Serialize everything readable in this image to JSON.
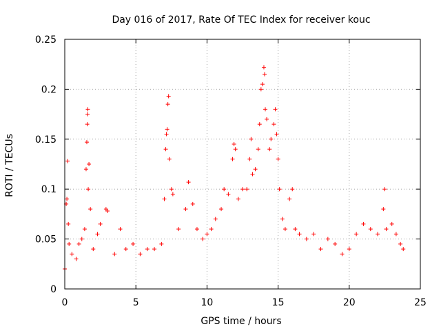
{
  "chart_data": {
    "type": "scatter",
    "title": "Day 016 of 2017, Rate Of TEC Index for receiver kouc",
    "xlabel": "GPS time / hours",
    "ylabel": "ROTI / TECUs",
    "xlim": [
      0,
      25
    ],
    "ylim": [
      0,
      0.25
    ],
    "x_ticks": [
      0,
      5,
      10,
      15,
      20,
      25
    ],
    "x_tick_labels": [
      "0",
      "5",
      "10",
      "15",
      "20",
      "25"
    ],
    "y_ticks": [
      0,
      0.05,
      0.1,
      0.15,
      0.2,
      0.25
    ],
    "y_tick_labels": [
      "0",
      "0.05",
      "0.1",
      "0.15",
      "0.2",
      "0.25"
    ],
    "grid": true,
    "marker": "plus",
    "color": "#ff0000",
    "series": [
      {
        "points": [
          [
            0.0,
            0.02
          ],
          [
            0.1,
            0.085
          ],
          [
            0.15,
            0.09
          ],
          [
            0.2,
            0.128
          ],
          [
            0.25,
            0.065
          ],
          [
            0.3,
            0.045
          ],
          [
            0.5,
            0.035
          ],
          [
            0.8,
            0.03
          ],
          [
            1.0,
            0.045
          ],
          [
            1.2,
            0.05
          ],
          [
            1.4,
            0.06
          ],
          [
            1.5,
            0.12
          ],
          [
            1.55,
            0.147
          ],
          [
            1.58,
            0.165
          ],
          [
            1.6,
            0.175
          ],
          [
            1.62,
            0.18
          ],
          [
            1.65,
            0.1
          ],
          [
            1.7,
            0.125
          ],
          [
            1.8,
            0.08
          ],
          [
            2.0,
            0.04
          ],
          [
            2.3,
            0.055
          ],
          [
            2.5,
            0.065
          ],
          [
            2.9,
            0.08
          ],
          [
            3.0,
            0.078
          ],
          [
            3.5,
            0.035
          ],
          [
            3.9,
            0.06
          ],
          [
            4.3,
            0.04
          ],
          [
            4.8,
            0.045
          ],
          [
            5.3,
            0.035
          ],
          [
            5.8,
            0.04
          ],
          [
            6.3,
            0.04
          ],
          [
            6.8,
            0.045
          ],
          [
            7.0,
            0.09
          ],
          [
            7.1,
            0.14
          ],
          [
            7.15,
            0.155
          ],
          [
            7.2,
            0.16
          ],
          [
            7.25,
            0.185
          ],
          [
            7.3,
            0.193
          ],
          [
            7.35,
            0.13
          ],
          [
            7.5,
            0.1
          ],
          [
            7.6,
            0.095
          ],
          [
            8.0,
            0.06
          ],
          [
            8.5,
            0.08
          ],
          [
            8.7,
            0.107
          ],
          [
            9.0,
            0.085
          ],
          [
            9.3,
            0.06
          ],
          [
            9.7,
            0.05
          ],
          [
            10.0,
            0.055
          ],
          [
            10.3,
            0.06
          ],
          [
            10.6,
            0.07
          ],
          [
            11.0,
            0.08
          ],
          [
            11.2,
            0.1
          ],
          [
            11.5,
            0.095
          ],
          [
            11.8,
            0.13
          ],
          [
            11.9,
            0.145
          ],
          [
            12.0,
            0.14
          ],
          [
            12.2,
            0.09
          ],
          [
            12.5,
            0.1
          ],
          [
            12.8,
            0.1
          ],
          [
            13.0,
            0.13
          ],
          [
            13.1,
            0.15
          ],
          [
            13.2,
            0.115
          ],
          [
            13.4,
            0.12
          ],
          [
            13.6,
            0.14
          ],
          [
            13.7,
            0.165
          ],
          [
            13.8,
            0.2
          ],
          [
            13.9,
            0.205
          ],
          [
            14.0,
            0.222
          ],
          [
            14.05,
            0.215
          ],
          [
            14.1,
            0.18
          ],
          [
            14.2,
            0.17
          ],
          [
            14.4,
            0.14
          ],
          [
            14.5,
            0.15
          ],
          [
            14.7,
            0.165
          ],
          [
            14.8,
            0.18
          ],
          [
            14.9,
            0.155
          ],
          [
            15.0,
            0.13
          ],
          [
            15.1,
            0.1
          ],
          [
            15.3,
            0.07
          ],
          [
            15.5,
            0.06
          ],
          [
            15.8,
            0.09
          ],
          [
            16.0,
            0.1
          ],
          [
            16.2,
            0.06
          ],
          [
            16.5,
            0.055
          ],
          [
            17.0,
            0.05
          ],
          [
            17.5,
            0.055
          ],
          [
            18.0,
            0.04
          ],
          [
            18.5,
            0.05
          ],
          [
            19.0,
            0.045
          ],
          [
            19.5,
            0.035
          ],
          [
            20.0,
            0.04
          ],
          [
            20.5,
            0.055
          ],
          [
            21.0,
            0.065
          ],
          [
            21.5,
            0.06
          ],
          [
            22.0,
            0.055
          ],
          [
            22.4,
            0.08
          ],
          [
            22.5,
            0.1
          ],
          [
            22.6,
            0.06
          ],
          [
            23.0,
            0.065
          ],
          [
            23.3,
            0.055
          ],
          [
            23.6,
            0.045
          ],
          [
            23.8,
            0.04
          ]
        ]
      }
    ]
  }
}
